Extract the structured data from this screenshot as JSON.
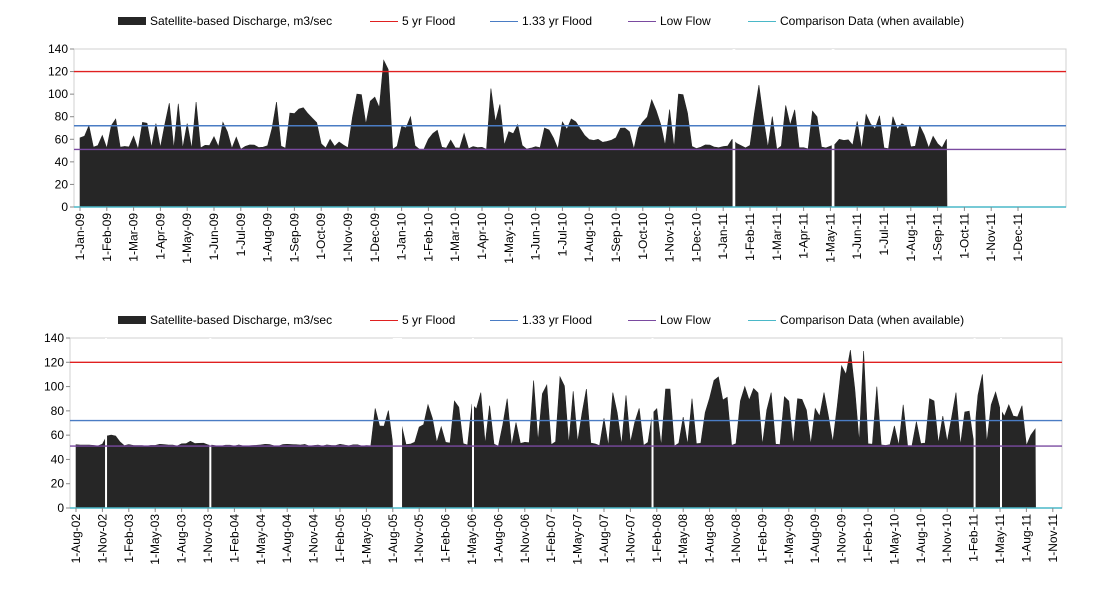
{
  "colors": {
    "discharge": "#262626",
    "flood5": "#e02020",
    "flood133": "#4a7cc4",
    "lowflow": "#7a4aa0",
    "comparison": "#4ab8c8",
    "axis": "#888888"
  },
  "legend": [
    {
      "label": "Satellite-based Discharge, m3/sec",
      "kind": "box",
      "color": "#262626"
    },
    {
      "label": "5 yr Flood",
      "kind": "line",
      "color": "#e02020"
    },
    {
      "label": "1.33 yr Flood",
      "kind": "line",
      "color": "#4a7cc4"
    },
    {
      "label": "Low Flow",
      "kind": "line",
      "color": "#7a4aa0"
    },
    {
      "label": "Comparison Data (when available)",
      "kind": "line",
      "color": "#4ab8c8"
    }
  ],
  "chart_data": [
    {
      "type": "area",
      "ylim": [
        0,
        140
      ],
      "yticks": [
        0,
        20,
        40,
        60,
        80,
        100,
        120,
        140
      ],
      "reference_lines": {
        "flood_5yr": 120,
        "flood_1_33yr": 72,
        "low_flow": 51,
        "comparison": 0
      },
      "x_labels": [
        "1-Jan-09",
        "1-Feb-09",
        "1-Mar-09",
        "1-Apr-09",
        "1-May-09",
        "1-Jun-09",
        "1-Jul-09",
        "1-Aug-09",
        "1-Sep-09",
        "1-Oct-09",
        "1-Nov-09",
        "1-Dec-09",
        "1-Jan-10",
        "1-Feb-10",
        "1-Mar-10",
        "1-Apr-10",
        "1-May-10",
        "1-Jun-10",
        "1-Jul-10",
        "1-Aug-10",
        "1-Sep-10",
        "1-Oct-10",
        "1-Nov-10",
        "1-Dec-10",
        "1-Jan-11",
        "1-Feb-11",
        "1-Mar-11",
        "1-Apr-11",
        "1-May-11",
        "1-Jun-11",
        "1-Jul-11",
        "1-Aug-11",
        "1-Sep-11",
        "1-Oct-11",
        "1-Nov-11",
        "1-Dec-11"
      ],
      "series": [
        {
          "name": "Satellite-based Discharge, m3/sec",
          "x": [
            "1-Jan-09",
            "1-Feb-09",
            "1-Mar-09",
            "1-Apr-09",
            "1-May-09",
            "1-Jun-09",
            "1-Jul-09",
            "1-Aug-09",
            "1-Sep-09",
            "1-Oct-09",
            "1-Nov-09",
            "1-Dec-09",
            "1-Jan-10",
            "1-Feb-10",
            "1-Mar-10",
            "1-Apr-10",
            "1-May-10",
            "1-Jun-10",
            "1-Jul-10",
            "1-Aug-10",
            "1-Sep-10",
            "1-Oct-10",
            "1-Nov-10",
            "1-Dec-10",
            "1-Jan-11",
            "1-Feb-11",
            "1-Mar-11",
            "1-Apr-11",
            "1-May-11",
            "1-Jun-11",
            "1-Jul-11",
            "1-Aug-11",
            "1-Sep-11"
          ],
          "values": [
            72,
            78,
            75,
            92,
            93,
            75,
            55,
            93,
            88,
            60,
            100,
            130,
            80,
            68,
            65,
            105,
            73,
            70,
            78,
            60,
            70,
            95,
            100,
            55,
            60,
            108,
            90,
            85,
            60,
            82,
            80,
            72,
            60
          ]
        }
      ]
    },
    {
      "type": "area",
      "ylim": [
        0,
        140
      ],
      "yticks": [
        0,
        20,
        40,
        60,
        80,
        100,
        120,
        140
      ],
      "reference_lines": {
        "flood_5yr": 120,
        "flood_1_33yr": 72,
        "low_flow": 51,
        "comparison": 0
      },
      "x_labels": [
        "1-Aug-02",
        "1-Nov-02",
        "1-Feb-03",
        "1-May-03",
        "1-Aug-03",
        "1-Nov-03",
        "1-Feb-04",
        "1-May-04",
        "1-Aug-04",
        "1-Nov-04",
        "1-Feb-05",
        "1-May-05",
        "1-Aug-05",
        "1-Nov-05",
        "1-Feb-06",
        "1-May-06",
        "1-Aug-06",
        "1-Nov-06",
        "1-Feb-07",
        "1-May-07",
        "1-Aug-07",
        "1-Nov-07",
        "1-Feb-08",
        "1-May-08",
        "1-Aug-08",
        "1-Nov-08",
        "1-Feb-09",
        "1-May-09",
        "1-Aug-09",
        "1-Nov-09",
        "1-Feb-10",
        "1-May-10",
        "1-Aug-10",
        "1-Nov-10",
        "1-Feb-11",
        "1-May-11",
        "1-Aug-11",
        "1-Nov-11"
      ],
      "series": [
        {
          "name": "Satellite-based Discharge, m3/sec",
          "x": [
            "1-Aug-02",
            "1-Nov-02",
            "1-Feb-03",
            "1-May-03",
            "1-Aug-03",
            "1-Nov-03",
            "1-Feb-04",
            "1-May-04",
            "1-Aug-04",
            "1-Nov-04",
            "1-Feb-05",
            "1-May-05",
            "1-Aug-05",
            "1-Nov-05",
            "1-Feb-06",
            "1-May-06",
            "1-Aug-06",
            "1-Nov-06",
            "1-Feb-07",
            "1-May-07",
            "1-Aug-07",
            "1-Nov-07",
            "1-Feb-08",
            "1-May-08",
            "1-Aug-08",
            "1-Nov-08",
            "1-Feb-09",
            "1-May-09",
            "1-Aug-09",
            "1-Nov-09",
            "1-Feb-10",
            "1-May-10",
            "1-Aug-10",
            "1-Nov-10",
            "1-Feb-11",
            "1-May-11",
            "1-Aug-11"
          ],
          "values": [
            51,
            60,
            51,
            51,
            55,
            51,
            51,
            51,
            51,
            51,
            51,
            82,
            68,
            85,
            88,
            95,
            90,
            105,
            108,
            98,
            95,
            82,
            98,
            90,
            108,
            100,
            95,
            90,
            95,
            130,
            100,
            85,
            90,
            95,
            110,
            85,
            65
          ]
        }
      ]
    }
  ]
}
